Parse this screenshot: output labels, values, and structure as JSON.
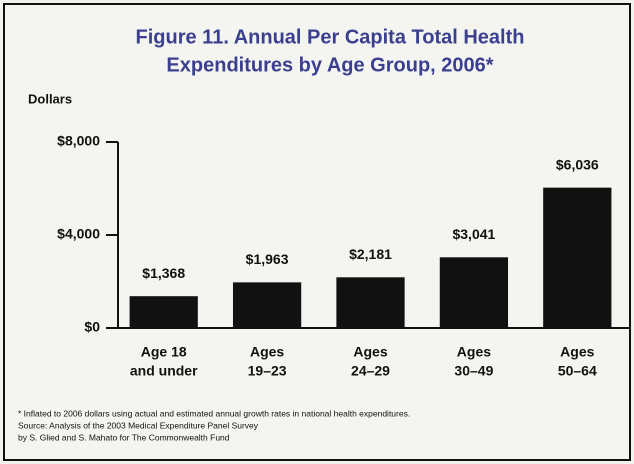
{
  "chart_data": {
    "type": "bar",
    "title": [
      "Figure 11. Annual Per Capita Total Health",
      "Expenditures by Age Group, 2006*"
    ],
    "y_label": "Dollars",
    "categories": [
      [
        "Age 18",
        "and under"
      ],
      [
        "Ages",
        "19–23"
      ],
      [
        "Ages",
        "24–29"
      ],
      [
        "Ages",
        "30–49"
      ],
      [
        "Ages",
        "50–64"
      ]
    ],
    "values": [
      1368,
      1963,
      2181,
      3041,
      6036
    ],
    "value_labels": [
      "$1,368",
      "$1,963",
      "$2,181",
      "$3,041",
      "$6,036"
    ],
    "color": "#111111",
    "ylim": [
      0,
      8000
    ],
    "yticks": [
      {
        "value": 0,
        "label": "$0"
      },
      {
        "value": 4000,
        "label": "$4,000"
      },
      {
        "value": 8000,
        "label": "$8,000"
      }
    ],
    "notes": [
      "* Inflated to 2006 dollars using actual and estimated annual growth rates in national health expenditures.",
      "Source: Analysis of the 2003 Medical Expenditure Panel Survey",
      "by S. Glied and S. Mahato for The Commonwealth Fund"
    ]
  }
}
